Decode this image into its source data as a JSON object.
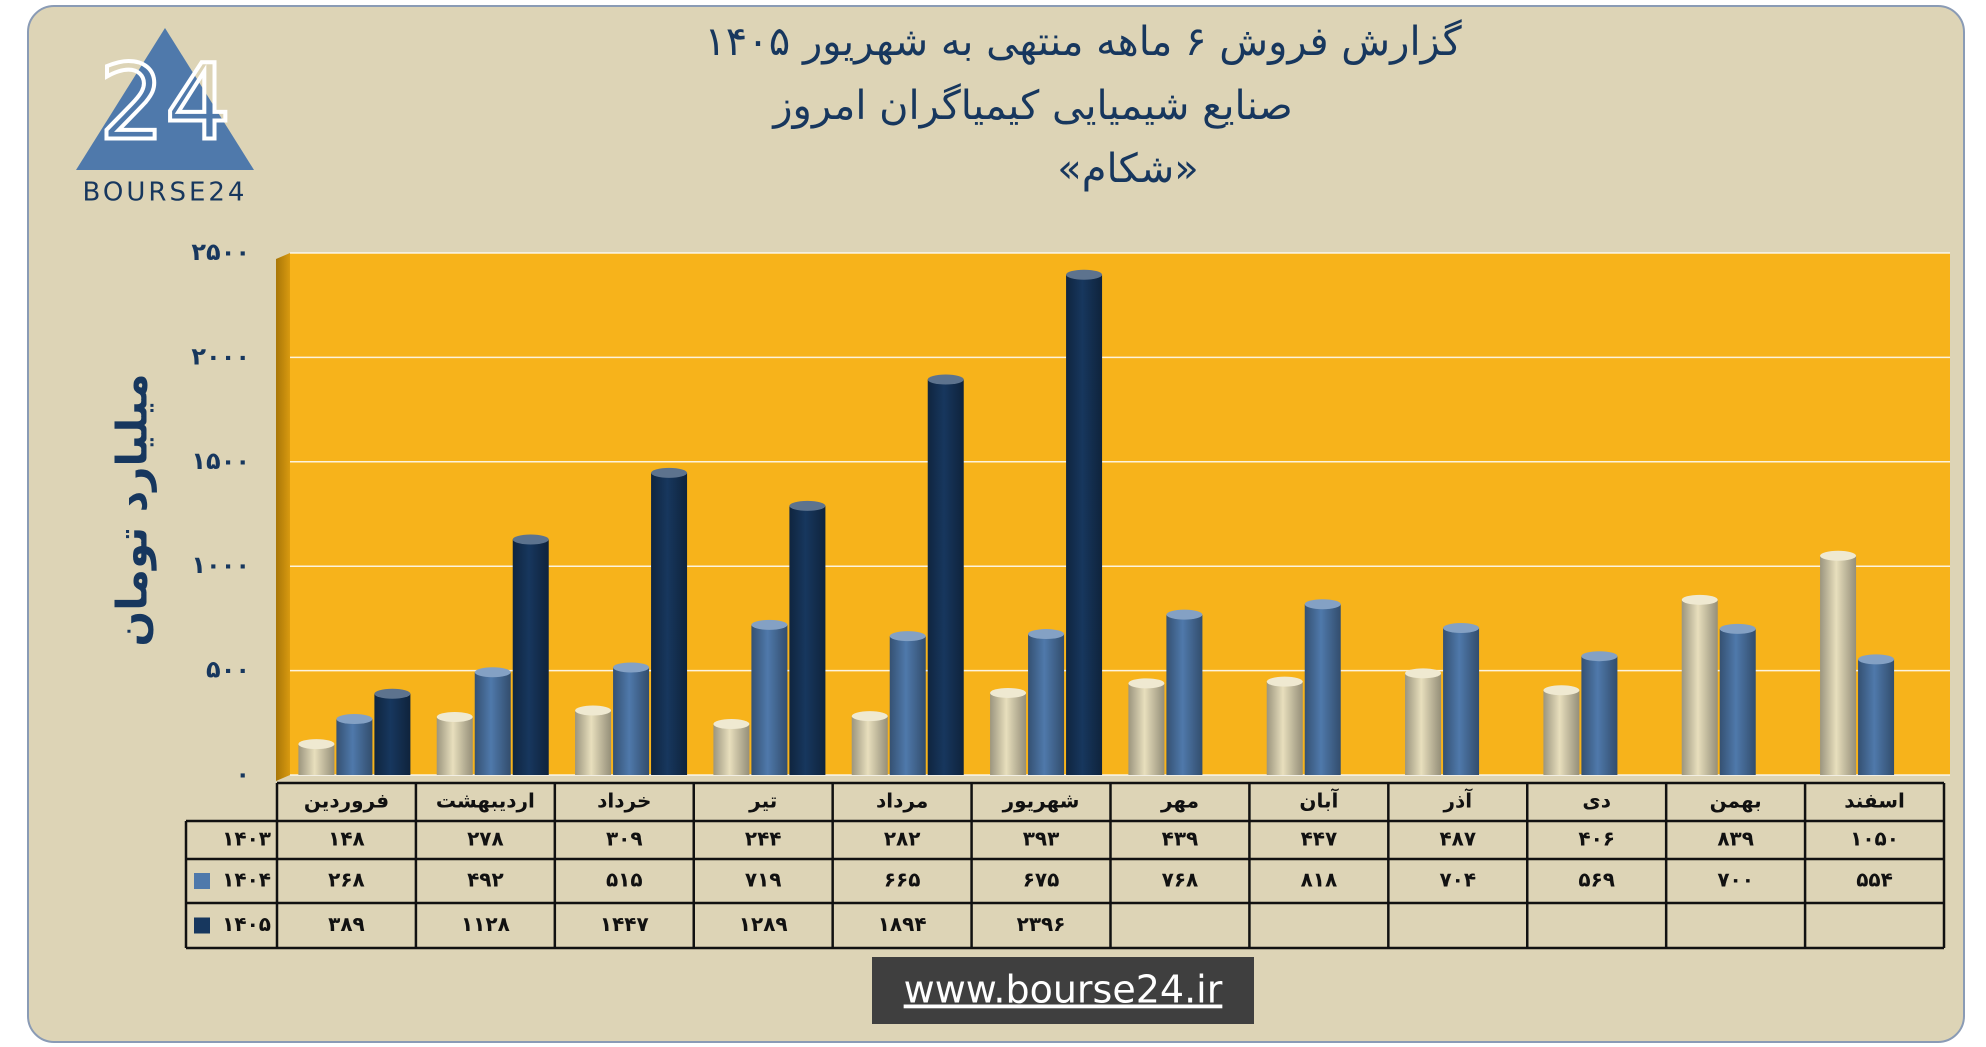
{
  "logo": {
    "number": "24",
    "name": "BOURSE24"
  },
  "footer": "www.bourse24.ir",
  "chart_data": {
    "type": "bar",
    "title": "گزارش فروش ۶ ماهه منتهی به شهریور ۱۴۰۵",
    "subtitle": "صنایع شیمیایی کیمیاگران امروز",
    "subtitle2": "«شکام»",
    "y_label": "میلیارد تومان",
    "categories": [
      "فروردین",
      "اردیبهشت",
      "خرداد",
      "تیر",
      "مرداد",
      "شهریور",
      "مهر",
      "آبان",
      "آذر",
      "دی",
      "بهمن",
      "اسفند"
    ],
    "series": [
      {
        "name": "۱۴۰۳",
        "color": "#e8dfbd",
        "values": [
          148,
          278,
          309,
          244,
          282,
          393,
          439,
          447,
          487,
          406,
          839,
          1050
        ],
        "value_labels": [
          "۱۴۸",
          "۲۷۸",
          "۳۰۹",
          "۲۴۴",
          "۲۸۲",
          "۳۹۳",
          "۴۳۹",
          "۴۴۷",
          "۴۸۷",
          "۴۰۶",
          "۸۳۹",
          "۱۰۵۰"
        ]
      },
      {
        "name": "۱۴۰۴",
        "color": "#4f79ab",
        "values": [
          268,
          492,
          515,
          719,
          665,
          675,
          768,
          818,
          704,
          569,
          700,
          554
        ],
        "value_labels": [
          "۲۶۸",
          "۴۹۲",
          "۵۱۵",
          "۷۱۹",
          "۶۶۵",
          "۶۷۵",
          "۷۶۸",
          "۸۱۸",
          "۷۰۴",
          "۵۶۹",
          "۷۰۰",
          "۵۵۴"
        ]
      },
      {
        "name": "۱۴۰۵",
        "color": "#17375e",
        "values": [
          389,
          1128,
          1447,
          1289,
          1894,
          2396,
          null,
          null,
          null,
          null,
          null,
          null
        ],
        "value_labels": [
          "۳۸۹",
          "۱۱۲۸",
          "۱۴۴۷",
          "۱۲۸۹",
          "۱۸۹۴",
          "۲۳۹۶",
          null,
          null,
          null,
          null,
          null,
          null
        ]
      }
    ],
    "ylim": [
      0,
      2500
    ],
    "yticks": [
      {
        "value": 0,
        "label": "۰"
      },
      {
        "value": 500,
        "label": "۵۰۰"
      },
      {
        "value": 1000,
        "label": "۱۰۰۰"
      },
      {
        "value": 1500,
        "label": "۱۵۰۰"
      },
      {
        "value": 2000,
        "label": "۲۰۰۰"
      },
      {
        "value": 2500,
        "label": "۲۵۰۰"
      }
    ],
    "grid": true,
    "plot_color": "#f7b31b"
  }
}
